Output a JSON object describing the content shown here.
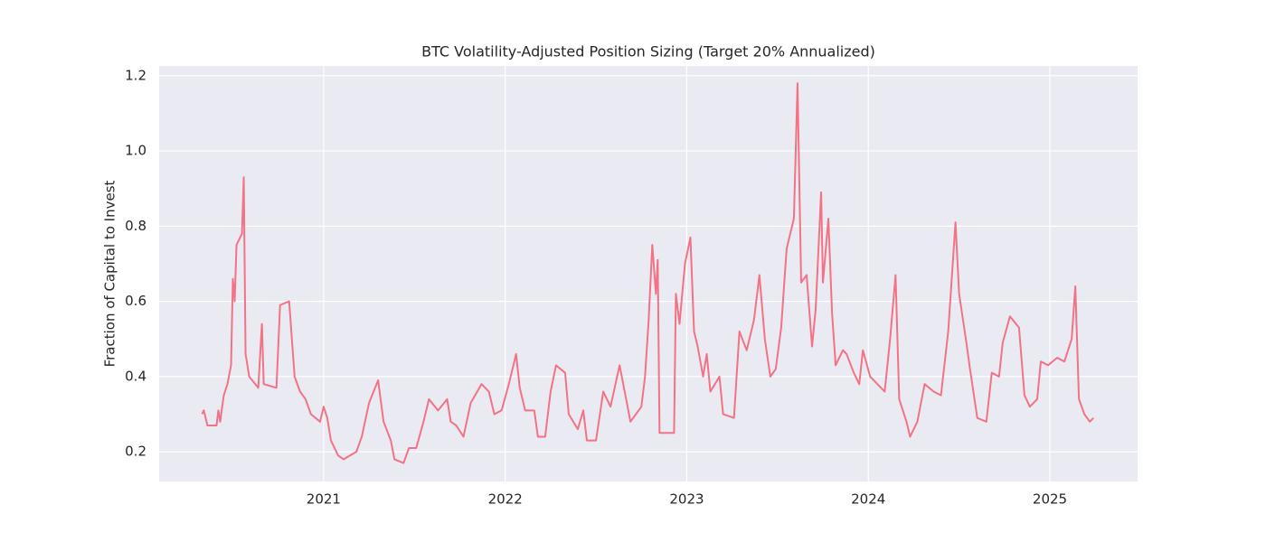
{
  "chart_data": {
    "type": "line",
    "title": "BTC Volatility-Adjusted Position Sizing (Target 20% Annualized)",
    "ylabel": "Fraction of Capital to Invest",
    "color": "#f37285",
    "grid": true,
    "xlim": [
      2020.094,
      2025.483
    ],
    "xticks": [
      2021,
      2022,
      2023,
      2024,
      2025
    ],
    "ylim": [
      0.121,
      1.226
    ],
    "yticks": [
      0.2,
      0.4,
      0.6,
      0.8,
      {
        "value": 1,
        "label": "1.0"
      },
      1.2
    ],
    "x": [
      2020.33,
      2020.34,
      2020.36,
      2020.41,
      2020.42,
      2020.43,
      2020.45,
      2020.47,
      2020.49,
      2020.5,
      2020.51,
      2020.52,
      2020.55,
      2020.56,
      2020.57,
      2020.59,
      2020.64,
      2020.66,
      2020.67,
      2020.74,
      2020.76,
      2020.81,
      2020.84,
      2020.87,
      2020.9,
      2020.93,
      2020.98,
      2021.0,
      2021.02,
      2021.04,
      2021.08,
      2021.11,
      2021.18,
      2021.21,
      2021.25,
      2021.3,
      2021.33,
      2021.37,
      2021.39,
      2021.44,
      2021.47,
      2021.51,
      2021.55,
      2021.58,
      2021.63,
      2021.68,
      2021.7,
      2021.73,
      2021.77,
      2021.81,
      2021.87,
      2021.91,
      2021.94,
      2021.98,
      2022.02,
      2022.06,
      2022.08,
      2022.11,
      2022.16,
      2022.18,
      2022.22,
      2022.25,
      2022.28,
      2022.33,
      2022.35,
      2022.4,
      2022.43,
      2022.45,
      2022.5,
      2022.54,
      2022.58,
      2022.63,
      2022.65,
      2022.69,
      2022.75,
      2022.77,
      2022.79,
      2022.81,
      2022.83,
      2022.84,
      2022.85,
      2022.93,
      2022.94,
      2022.96,
      2022.99,
      2023.02,
      2023.04,
      2023.06,
      2023.09,
      2023.11,
      2023.13,
      2023.18,
      2023.2,
      2023.26,
      2023.29,
      2023.33,
      2023.37,
      2023.4,
      2023.43,
      2023.46,
      2023.49,
      2023.52,
      2023.55,
      2023.59,
      2023.61,
      2023.63,
      2023.66,
      2023.69,
      2023.71,
      2023.74,
      2023.75,
      2023.78,
      2023.8,
      2023.82,
      2023.86,
      2023.88,
      2023.92,
      2023.95,
      2023.97,
      2024.01,
      2024.05,
      2024.09,
      2024.12,
      2024.15,
      2024.17,
      2024.21,
      2024.23,
      2024.27,
      2024.31,
      2024.36,
      2024.4,
      2024.44,
      2024.48,
      2024.5,
      2024.54,
      2024.56,
      2024.6,
      2024.65,
      2024.68,
      2024.72,
      2024.74,
      2024.78,
      2024.83,
      2024.86,
      2024.89,
      2024.93,
      2024.95,
      2024.99,
      2025.04,
      2025.08,
      2025.12,
      2025.14,
      2025.16,
      2025.19,
      2025.22,
      2025.24
    ],
    "values": [
      0.3,
      0.31,
      0.27,
      0.27,
      0.31,
      0.28,
      0.35,
      0.38,
      0.43,
      0.66,
      0.6,
      0.75,
      0.78,
      0.93,
      0.46,
      0.4,
      0.37,
      0.54,
      0.38,
      0.37,
      0.59,
      0.6,
      0.4,
      0.36,
      0.34,
      0.3,
      0.28,
      0.32,
      0.29,
      0.23,
      0.19,
      0.18,
      0.2,
      0.24,
      0.33,
      0.39,
      0.28,
      0.23,
      0.18,
      0.17,
      0.21,
      0.21,
      0.28,
      0.34,
      0.31,
      0.34,
      0.28,
      0.27,
      0.24,
      0.33,
      0.38,
      0.36,
      0.3,
      0.31,
      0.38,
      0.46,
      0.37,
      0.31,
      0.31,
      0.24,
      0.24,
      0.36,
      0.43,
      0.41,
      0.3,
      0.26,
      0.31,
      0.23,
      0.23,
      0.36,
      0.32,
      0.43,
      0.38,
      0.28,
      0.32,
      0.4,
      0.55,
      0.75,
      0.62,
      0.71,
      0.25,
      0.25,
      0.62,
      0.54,
      0.7,
      0.77,
      0.52,
      0.48,
      0.4,
      0.46,
      0.36,
      0.4,
      0.3,
      0.29,
      0.52,
      0.47,
      0.55,
      0.67,
      0.5,
      0.4,
      0.42,
      0.53,
      0.74,
      0.82,
      1.18,
      0.65,
      0.67,
      0.48,
      0.58,
      0.89,
      0.65,
      0.82,
      0.57,
      0.43,
      0.47,
      0.46,
      0.41,
      0.38,
      0.47,
      0.4,
      0.38,
      0.36,
      0.5,
      0.67,
      0.34,
      0.28,
      0.24,
      0.28,
      0.38,
      0.36,
      0.35,
      0.52,
      0.81,
      0.62,
      0.49,
      0.42,
      0.29,
      0.28,
      0.41,
      0.4,
      0.49,
      0.56,
      0.53,
      0.35,
      0.32,
      0.34,
      0.44,
      0.43,
      0.45,
      0.44,
      0.5,
      0.64,
      0.34,
      0.3,
      0.28,
      0.29
    ]
  }
}
